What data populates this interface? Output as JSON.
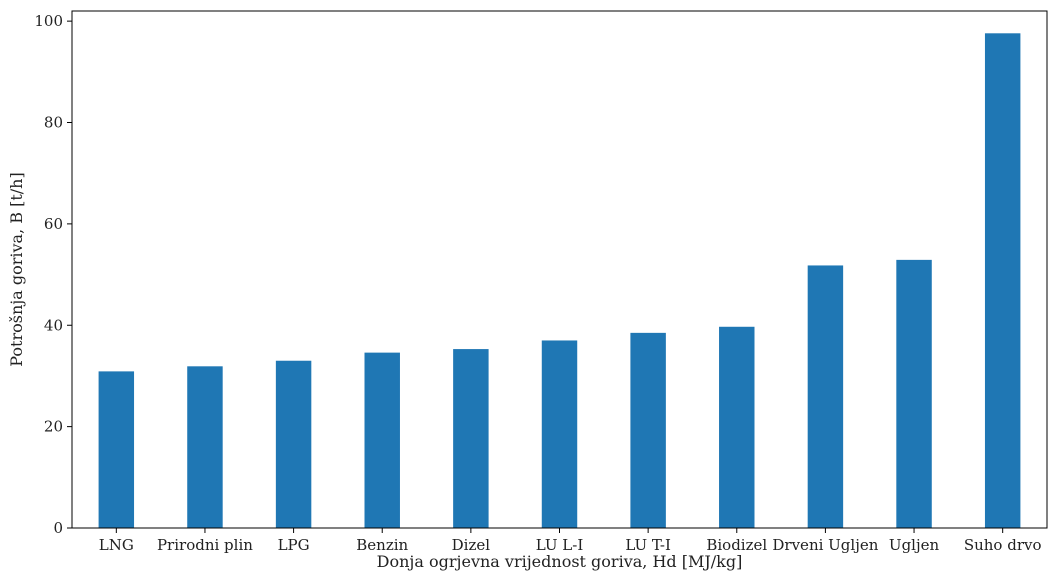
{
  "chart_data": {
    "type": "bar",
    "categories": [
      "LNG",
      "Prirodni plin",
      "LPG",
      "Benzin",
      "Dizel",
      "LU L-I",
      "LU T-I",
      "Biodizel",
      "Drveni Ugljen",
      "Ugljen",
      "Suho drvo"
    ],
    "values": [
      30.9,
      31.9,
      33.0,
      34.6,
      35.3,
      37.0,
      38.5,
      39.7,
      51.8,
      52.9,
      97.6
    ],
    "title": "",
    "xlabel": "Donja ogrjevna vrijednost goriva, Hd [MJ/kg]",
    "ylabel": "Potrošnja goriva, B [t/h]",
    "ylim": [
      0,
      102
    ],
    "yticks": [
      0,
      20,
      40,
      60,
      80,
      100
    ],
    "grid": false,
    "bar_color": "#1f77b4"
  }
}
